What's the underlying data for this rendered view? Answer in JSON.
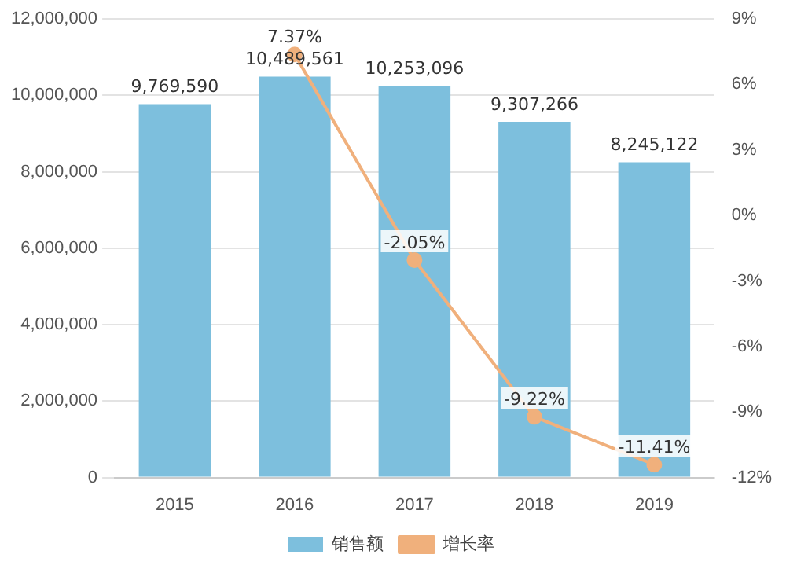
{
  "chart_data": {
    "type": "bar",
    "categories": [
      "2015",
      "2016",
      "2017",
      "2018",
      "2019"
    ],
    "series": [
      {
        "name": "销售额",
        "color": "#7dbfdd",
        "values": [
          9769590,
          10489561,
          10253096,
          9307266,
          8245122
        ],
        "value_labels": [
          "9,769,590",
          "10,489,561",
          "10,253,096",
          "9,307,266",
          "8,245,122"
        ]
      },
      {
        "name": "增长率",
        "type": "line",
        "axis": "y2",
        "color": "#f0b07c",
        "values": [
          null,
          7.37,
          -2.05,
          -9.22,
          -11.41
        ],
        "value_labels": [
          null,
          "7.37%",
          "-2.05%",
          "-9.22%",
          "-11.41%"
        ]
      }
    ],
    "ylim": [
      0,
      12000000
    ],
    "yticks": [
      0,
      {
        "value": 2000000,
        "label": "2,000,000"
      },
      {
        "value": 4000000,
        "label": "4,000,000"
      },
      {
        "value": 6000000,
        "label": "6,000,000"
      },
      {
        "value": 8000000,
        "label": "8,000,000"
      },
      {
        "value": 10000000,
        "label": "10,000,000"
      },
      {
        "value": 12000000,
        "label": "12,000,000"
      }
    ],
    "y2lim": [
      -12,
      9
    ],
    "y2ticks": [
      {
        "value": -12,
        "label": "-12%"
      },
      {
        "value": -9,
        "label": "-9%"
      },
      {
        "value": -6,
        "label": "-6%"
      },
      {
        "value": -3,
        "label": "-3%"
      },
      {
        "value": 0,
        "label": "0%"
      },
      {
        "value": 3,
        "label": "3%"
      },
      {
        "value": 6,
        "label": "6%"
      },
      {
        "value": 9,
        "label": "9%"
      }
    ],
    "grid": "y",
    "legend": "bottom",
    "marker": "circle"
  }
}
